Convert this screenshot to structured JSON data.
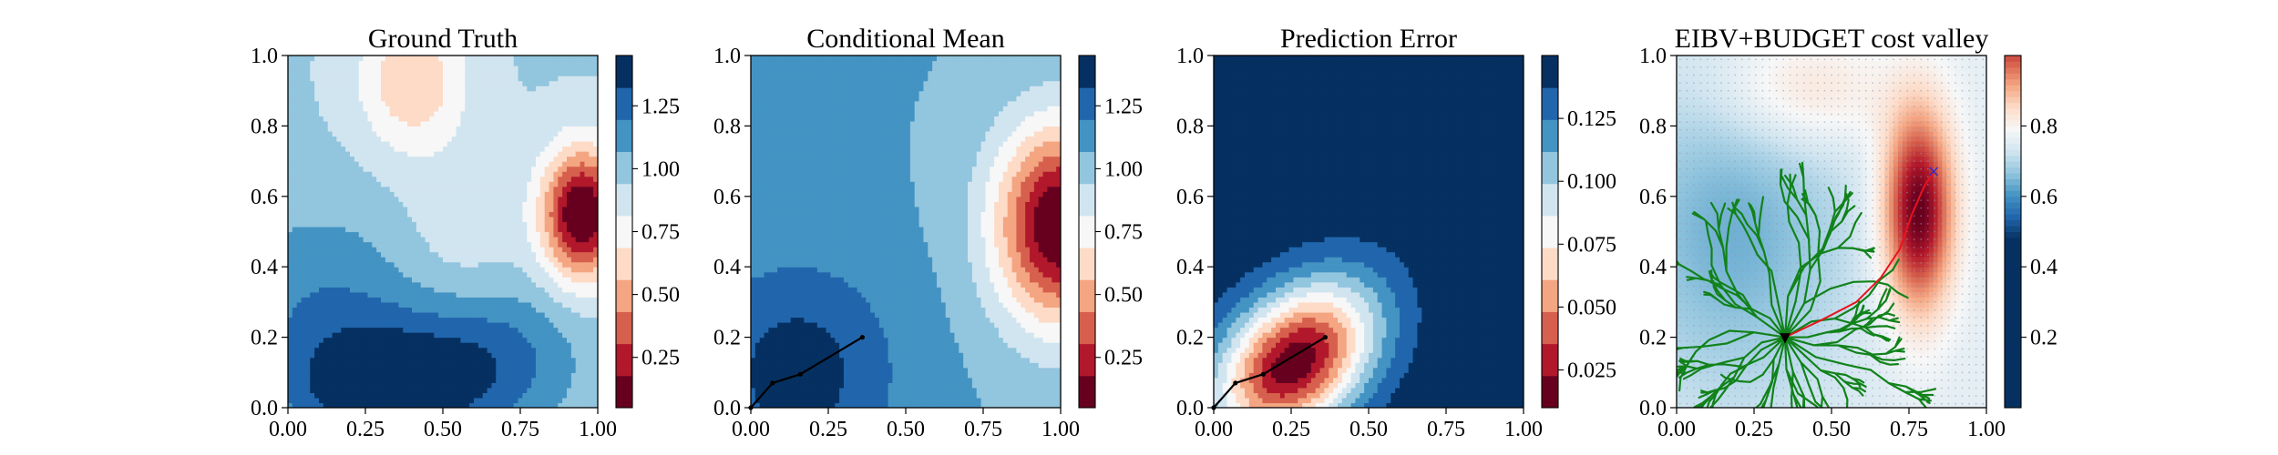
{
  "chart_data": [
    {
      "type": "heatmap",
      "title": "Ground Truth",
      "xlim": [
        0,
        1
      ],
      "ylim": [
        0,
        1
      ],
      "xticks": [
        "0.00",
        "0.25",
        "0.50",
        "0.75",
        "1.00"
      ],
      "yticks": [
        "0.0",
        "0.2",
        "0.4",
        "0.6",
        "0.8",
        "1.0"
      ],
      "colormap": "RdBu",
      "colorbar": {
        "ticks": [
          "0.25",
          "0.50",
          "0.75",
          "1.00",
          "1.25"
        ],
        "tick_values": [
          0.25,
          0.5,
          0.75,
          1.0,
          1.25
        ],
        "vmin": 0.05,
        "vmax": 1.45,
        "levels": 11
      },
      "field": {
        "base": 0.95,
        "sources": [
          {
            "x": 0.95,
            "y": 0.55,
            "amplitude": -0.95,
            "sx": 0.09,
            "sy": 0.13
          },
          {
            "x": 0.4,
            "y": 0.93,
            "amplitude": -0.38,
            "sx": 0.12,
            "sy": 0.14
          },
          {
            "x": 0.12,
            "y": 0.3,
            "amplitude": 0.22,
            "sx": 0.25,
            "sy": 0.2
          },
          {
            "x": 0.3,
            "y": 0.05,
            "amplitude": 0.45,
            "sx": 0.22,
            "sy": 0.13
          },
          {
            "x": 0.65,
            "y": 0.15,
            "amplitude": 0.3,
            "sx": 0.2,
            "sy": 0.15
          },
          {
            "x": 0.55,
            "y": 0.45,
            "amplitude": -0.12,
            "sx": 0.15,
            "sy": 0.2
          }
        ]
      },
      "path": []
    },
    {
      "type": "heatmap",
      "title": "Conditional Mean",
      "xlim": [
        0,
        1
      ],
      "ylim": [
        0,
        1
      ],
      "xticks": [
        "0.00",
        "0.25",
        "0.50",
        "0.75",
        "1.00"
      ],
      "yticks": [
        "0.0",
        "0.2",
        "0.4",
        "0.6",
        "0.8",
        "1.0"
      ],
      "colormap": "RdBu",
      "colorbar": {
        "ticks": [
          "0.25",
          "0.50",
          "0.75",
          "1.00",
          "1.25"
        ],
        "tick_values": [
          0.25,
          0.5,
          0.75,
          1.0,
          1.25
        ],
        "vmin": 0.05,
        "vmax": 1.45,
        "levels": 11
      },
      "field": {
        "base": 1.07,
        "sources": [
          {
            "x": 1.0,
            "y": 0.52,
            "amplitude": -1.05,
            "sx": 0.15,
            "sy": 0.2
          },
          {
            "x": 0.15,
            "y": 0.1,
            "amplitude": 0.32,
            "sx": 0.22,
            "sy": 0.22
          }
        ]
      },
      "path": [
        {
          "x": 0.0,
          "y": 0.0
        },
        {
          "x": 0.07,
          "y": 0.07
        },
        {
          "x": 0.16,
          "y": 0.095
        },
        {
          "x": 0.36,
          "y": 0.2
        }
      ]
    },
    {
      "type": "heatmap",
      "title": "Prediction Error",
      "xlim": [
        0,
        1
      ],
      "ylim": [
        0,
        1
      ],
      "xticks": [
        "0.00",
        "0.25",
        "0.50",
        "0.75",
        "1.00"
      ],
      "yticks": [
        "0.0",
        "0.2",
        "0.4",
        "0.6",
        "0.8",
        "1.0"
      ],
      "colormap": "RdBu",
      "colorbar": {
        "ticks": [
          "0.025",
          "0.050",
          "0.075",
          "0.100",
          "0.125"
        ],
        "tick_values": [
          0.025,
          0.05,
          0.075,
          0.1,
          0.125
        ],
        "vmin": 0.01,
        "vmax": 0.15,
        "levels": 11
      },
      "field": {
        "base": 0.148,
        "sources": [
          {
            "x": 0.26,
            "y": 0.13,
            "amplitude": -0.135,
            "sx": 0.2,
            "sy": 0.13,
            "rotation_deg": 35
          }
        ]
      },
      "path": [
        {
          "x": 0.0,
          "y": 0.0
        },
        {
          "x": 0.07,
          "y": 0.07
        },
        {
          "x": 0.16,
          "y": 0.095
        },
        {
          "x": 0.36,
          "y": 0.2
        }
      ]
    },
    {
      "type": "heatmap",
      "title": "EIBV+BUDGET cost valley",
      "xlim": [
        0,
        1
      ],
      "ylim": [
        0,
        1
      ],
      "xticks": [
        "0.00",
        "0.25",
        "0.50",
        "0.75",
        "1.00"
      ],
      "yticks": [
        "0.0",
        "0.2",
        "0.4",
        "0.6",
        "0.8",
        "1.0"
      ],
      "colormap": "RdBu",
      "colorbar": {
        "ticks": [
          "0.2",
          "0.4",
          "0.6",
          "0.8"
        ],
        "tick_values": [
          0.2,
          0.4,
          0.6,
          0.8
        ],
        "vmin": 0.0,
        "vmax": 1.0,
        "levels": 11
      },
      "field": {
        "base": 0.76,
        "sources": [
          {
            "x": 0.78,
            "y": 0.56,
            "amplitude": 0.36,
            "sx": 0.08,
            "sy": 0.2
          },
          {
            "x": 0.4,
            "y": 0.9,
            "amplitude": 0.1,
            "sx": 0.2,
            "sy": 0.12
          },
          {
            "x": 0.18,
            "y": 0.5,
            "amplitude": -0.12,
            "sx": 0.28,
            "sy": 0.35
          }
        ]
      },
      "tree": {
        "root": {
          "x": 0.35,
          "y": 0.2
        },
        "color": "#11821a"
      },
      "route": [
        {
          "x": 0.35,
          "y": 0.2
        },
        {
          "x": 0.47,
          "y": 0.25
        },
        {
          "x": 0.58,
          "y": 0.3
        },
        {
          "x": 0.66,
          "y": 0.37
        },
        {
          "x": 0.72,
          "y": 0.45
        },
        {
          "x": 0.76,
          "y": 0.55
        },
        {
          "x": 0.8,
          "y": 0.63
        },
        {
          "x": 0.83,
          "y": 0.67
        }
      ],
      "start_marker": {
        "x": 0.35,
        "y": 0.2,
        "symbol": "▼"
      },
      "target_marker": {
        "x": 0.83,
        "y": 0.67,
        "symbol": "×",
        "color": "#1f2bd6"
      },
      "route_color": "#e8141e"
    }
  ]
}
